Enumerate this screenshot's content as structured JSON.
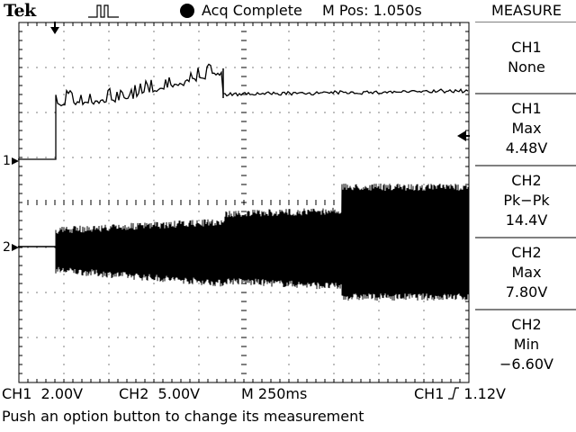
{
  "header": {
    "brand": "Tek",
    "trigger_icon": "pulse-trigger-icon",
    "acq_status": "Acq Complete",
    "position": "M Pos: 1.050s"
  },
  "markers": {
    "ch1_ground": "1",
    "ch2_ground": "2"
  },
  "measure": {
    "title": "MEASURE",
    "items": [
      {
        "line1": "CH1",
        "line2": "None",
        "line3": ""
      },
      {
        "line1": "CH1",
        "line2": "Max",
        "line3": "4.48V"
      },
      {
        "line1": "CH2",
        "line2": "Pk−Pk",
        "line3": "14.4V"
      },
      {
        "line1": "CH2",
        "line2": "Max",
        "line3": "7.80V"
      },
      {
        "line1": "CH2",
        "line2": "Min",
        "line3": "−6.60V"
      }
    ]
  },
  "footer": {
    "ch1_scale": "CH1  2.00V",
    "ch2_scale": "CH2  5.00V",
    "timebase": "M 250ms",
    "trigger_source": "CH1",
    "trigger_level": "1.12V",
    "message": "Push an option button to change its measurement"
  },
  "colors": {
    "background": "#ffffff",
    "trace": "#000000",
    "grid": "#000000"
  }
}
